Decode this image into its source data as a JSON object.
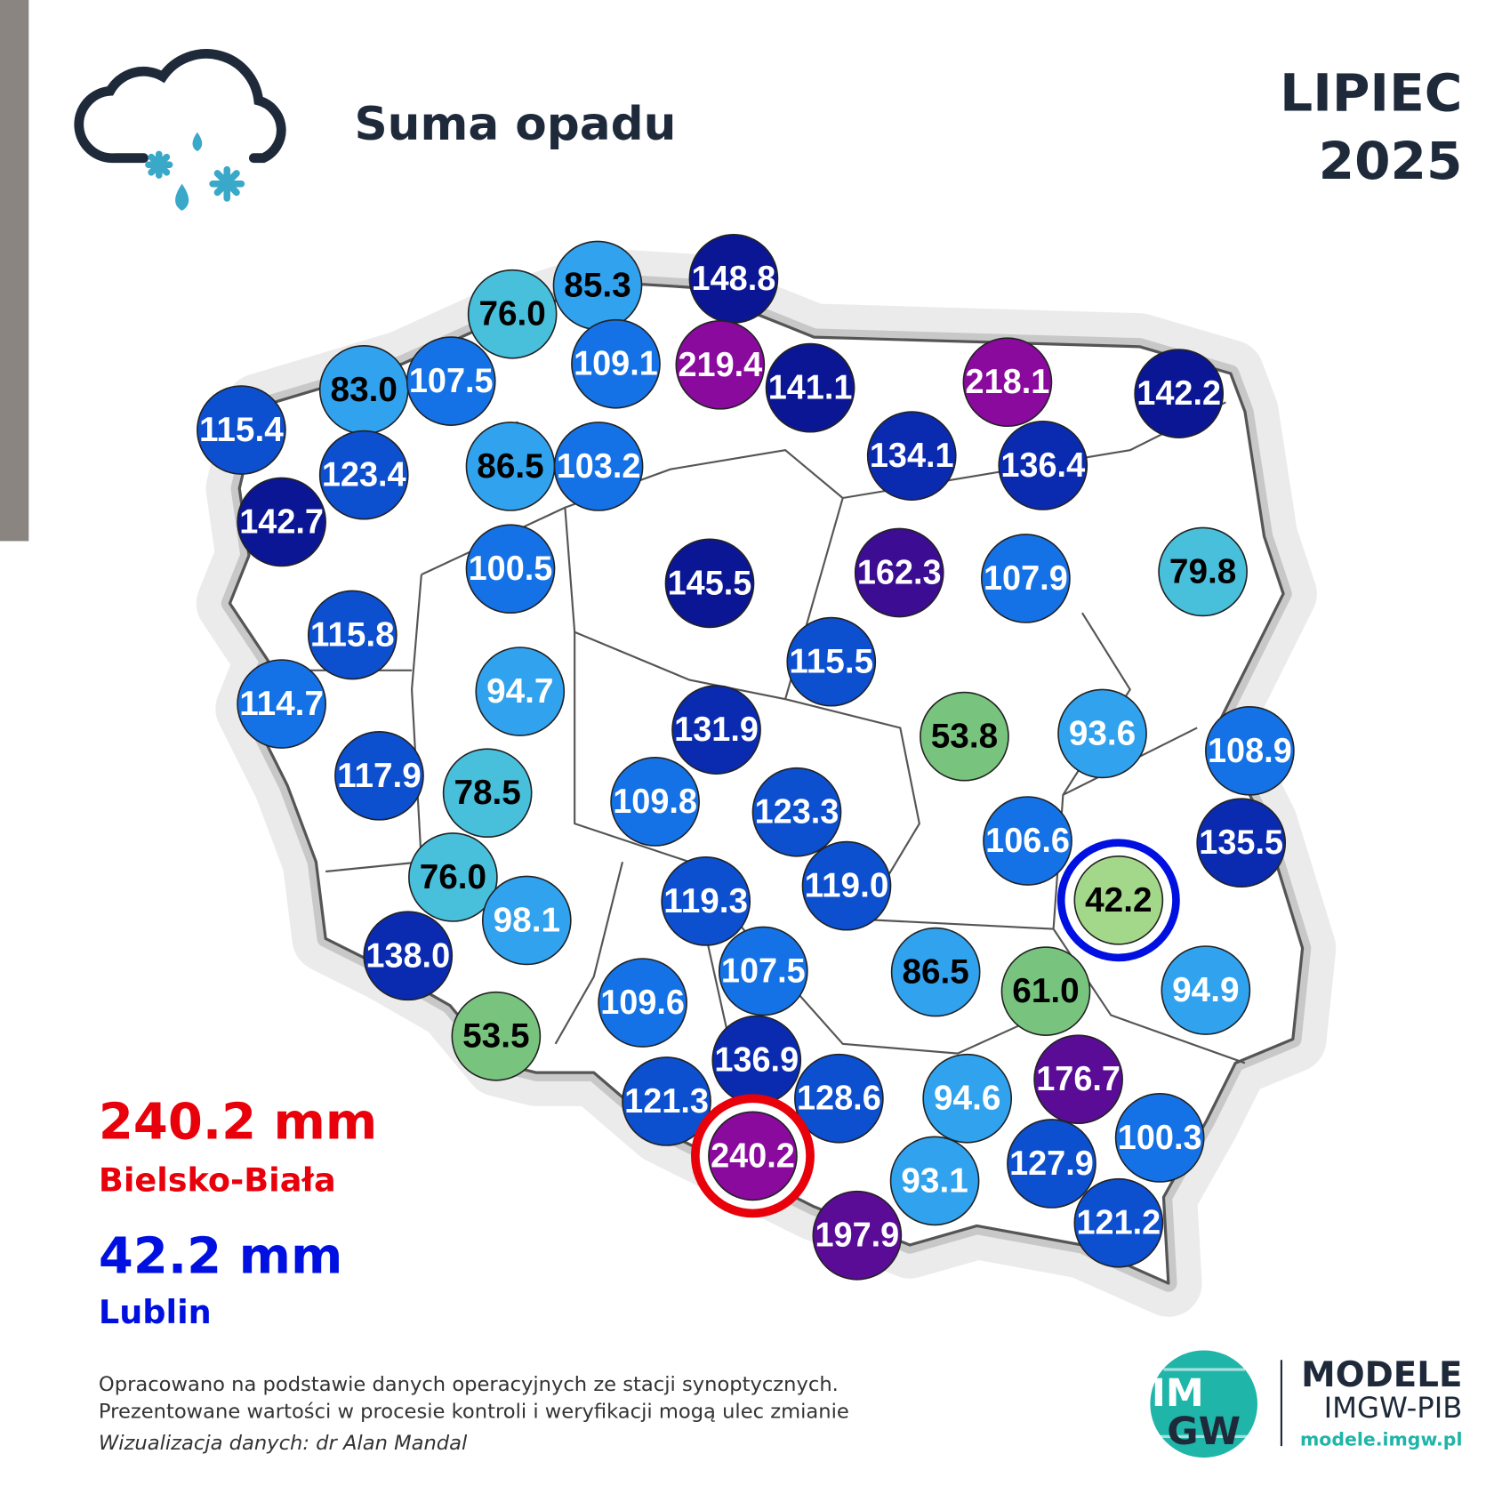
{
  "header": {
    "title": "Suma opadu",
    "month": "LIPIEC",
    "year": "2025"
  },
  "stations": [
    "76.0",
    "85.3",
    "148.8",
    "83.0",
    "107.5",
    "109.1",
    "219.4",
    "141.1",
    "218.1",
    "142.2",
    "115.4",
    "123.4",
    "86.5",
    "103.2",
    "134.1",
    "136.4",
    "142.7",
    "100.5",
    "145.5",
    "162.3",
    "107.9",
    "79.8",
    "115.8",
    "115.5",
    "114.7",
    "94.7",
    "131.9",
    "53.8",
    "93.6",
    "108.9",
    "117.9",
    "78.5",
    "109.8",
    "123.3",
    "106.6",
    "135.5",
    "76.0",
    "98.1",
    "119.3",
    "119.0",
    "42.2",
    "138.0",
    "107.5",
    "86.5",
    "61.0",
    "94.9",
    "109.6",
    "53.5",
    "136.9",
    "176.7",
    "121.3",
    "128.6",
    "94.6",
    "100.3",
    "240.2",
    "127.9",
    "93.1",
    "121.2",
    "197.9"
  ],
  "extremes": {
    "max": {
      "value": "240.2 mm",
      "station": "Bielsko-Biała"
    },
    "min": {
      "value": "42.2 mm",
      "station": "Lublin"
    }
  },
  "footer": {
    "lines": [
      "Opracowano na podstawie danych operacyjnych ze stacji synoptycznych.",
      "Prezentowane wartości w procesie kontroli i weryfikacji mogą ulec zmianie"
    ],
    "credit": "Wizualizacja danych: dr Alan Mandal"
  },
  "logo": {
    "mark": [
      "IM",
      "GW"
    ],
    "name": "MODELE",
    "org": "IMGW-PIB",
    "url": "modele.imgw.pl"
  }
}
